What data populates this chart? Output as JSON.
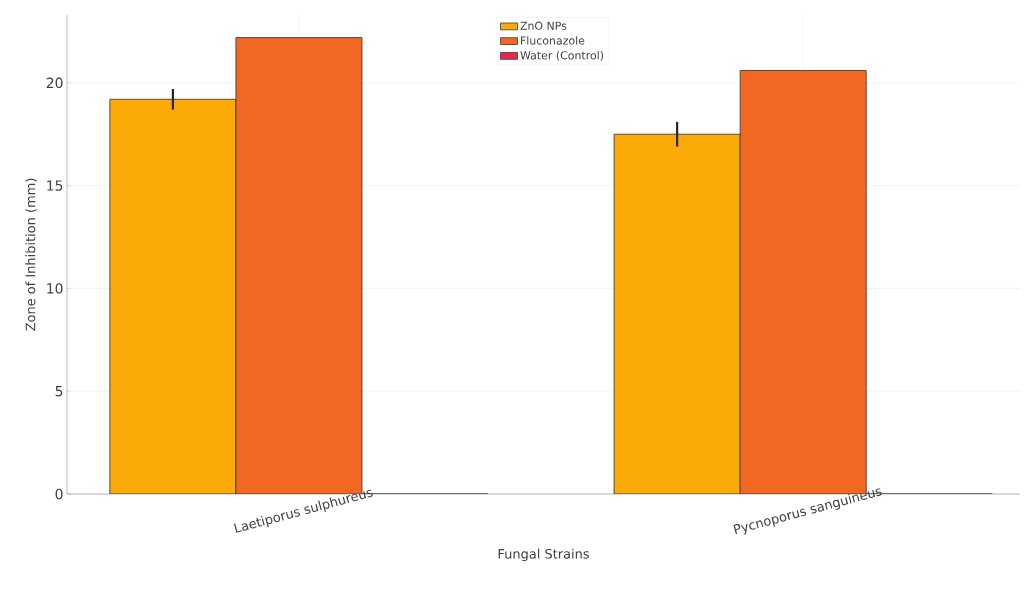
{
  "chart_data": {
    "type": "bar",
    "xlabel": "Fungal Strains",
    "ylabel": "Zone of Inhibition (mm)",
    "categories": [
      "Laetiporus sulphureus",
      "Pycnoporus sanguineus"
    ],
    "series": [
      {
        "name": "ZnO NPs",
        "color": "#fbaa08",
        "values": [
          19.2,
          17.5
        ],
        "errors": [
          0.5,
          0.6
        ]
      },
      {
        "name": "Fluconazole",
        "color": "#f26722",
        "values": [
          22.2,
          20.6
        ]
      },
      {
        "name": "Water (Control)",
        "color": "#e8254f",
        "values": [
          0,
          0
        ]
      }
    ],
    "ylim": [
      0,
      23.3
    ],
    "yticks": [
      0,
      5,
      10,
      15,
      20
    ],
    "grid": true,
    "legend": "top"
  }
}
